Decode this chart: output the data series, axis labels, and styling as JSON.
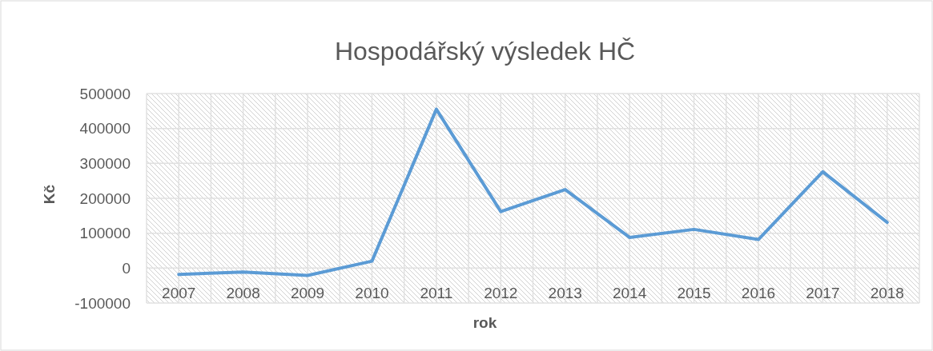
{
  "chart_data": {
    "type": "line",
    "title": "Hospodářský výsledek HČ",
    "xlabel": "rok",
    "ylabel": "Kč",
    "categories": [
      "2007",
      "2008",
      "2009",
      "2010",
      "2011",
      "2012",
      "2013",
      "2014",
      "2015",
      "2016",
      "2017",
      "2018"
    ],
    "series": [
      {
        "color": "#5b9bd5",
        "values": [
          -18000,
          -11000,
          -21000,
          20000,
          455000,
          162000,
          225000,
          88000,
          111000,
          82000,
          276000,
          131000
        ]
      }
    ],
    "ylim": [
      -100000,
      500000
    ],
    "yticks": [
      -100000,
      0,
      100000,
      200000,
      300000,
      400000,
      500000
    ],
    "grid": true,
    "marker": "none",
    "line_style": "solid"
  }
}
